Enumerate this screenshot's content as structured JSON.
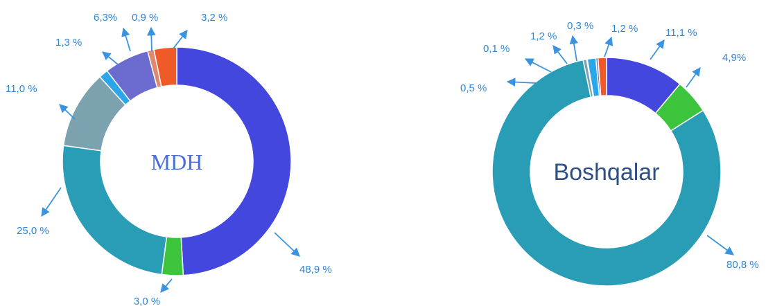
{
  "colors": {
    "label": "#2F86D8",
    "arrow": "#3A93DE",
    "center_left": "#4A6FD6",
    "center_right": "#2E4F86"
  },
  "chart_data": [
    {
      "type": "pie",
      "center_label": "MDH",
      "slices": [
        {
          "value": 48.9,
          "label": "48,9 %",
          "color": "#4347DE"
        },
        {
          "value": 3.0,
          "label": "3,0 %",
          "color": "#3DC43D"
        },
        {
          "value": 25.0,
          "label": "25,0 %",
          "color": "#2A9DB6"
        },
        {
          "value": 11.0,
          "label": "11,0 %",
          "color": "#7DA2AF"
        },
        {
          "value": 1.3,
          "label": "1,3 %",
          "color": "#2BA6E8"
        },
        {
          "value": 6.3,
          "label": "6,3%",
          "color": "#6B6BD0"
        },
        {
          "value": 0.9,
          "label": "0,9 %",
          "color": "#DE8A72"
        },
        {
          "value": 3.2,
          "label": "3,2 %",
          "color": "#F05A28"
        }
      ]
    },
    {
      "type": "pie",
      "center_label": "Boshqalar",
      "slices": [
        {
          "value": 11.1,
          "label": "11,1 %",
          "color": "#4347DE"
        },
        {
          "value": 4.9,
          "label": "4,9%",
          "color": "#3DC43D"
        },
        {
          "value": 80.8,
          "label": "80,8 %",
          "color": "#2A9DB6"
        },
        {
          "value": 0.5,
          "label": "0,5 %",
          "color": "#7DA2AF"
        },
        {
          "value": 0.1,
          "label": "0,1 %",
          "color": "#3E8F7A"
        },
        {
          "value": 1.2,
          "label": "1,2 %",
          "color": "#2BA6E8"
        },
        {
          "value": 0.3,
          "label": "0,3 %",
          "color": "#6B6BD0"
        },
        {
          "value": 1.2,
          "label": "1,2 %",
          "color": "#F05A28"
        }
      ]
    }
  ]
}
